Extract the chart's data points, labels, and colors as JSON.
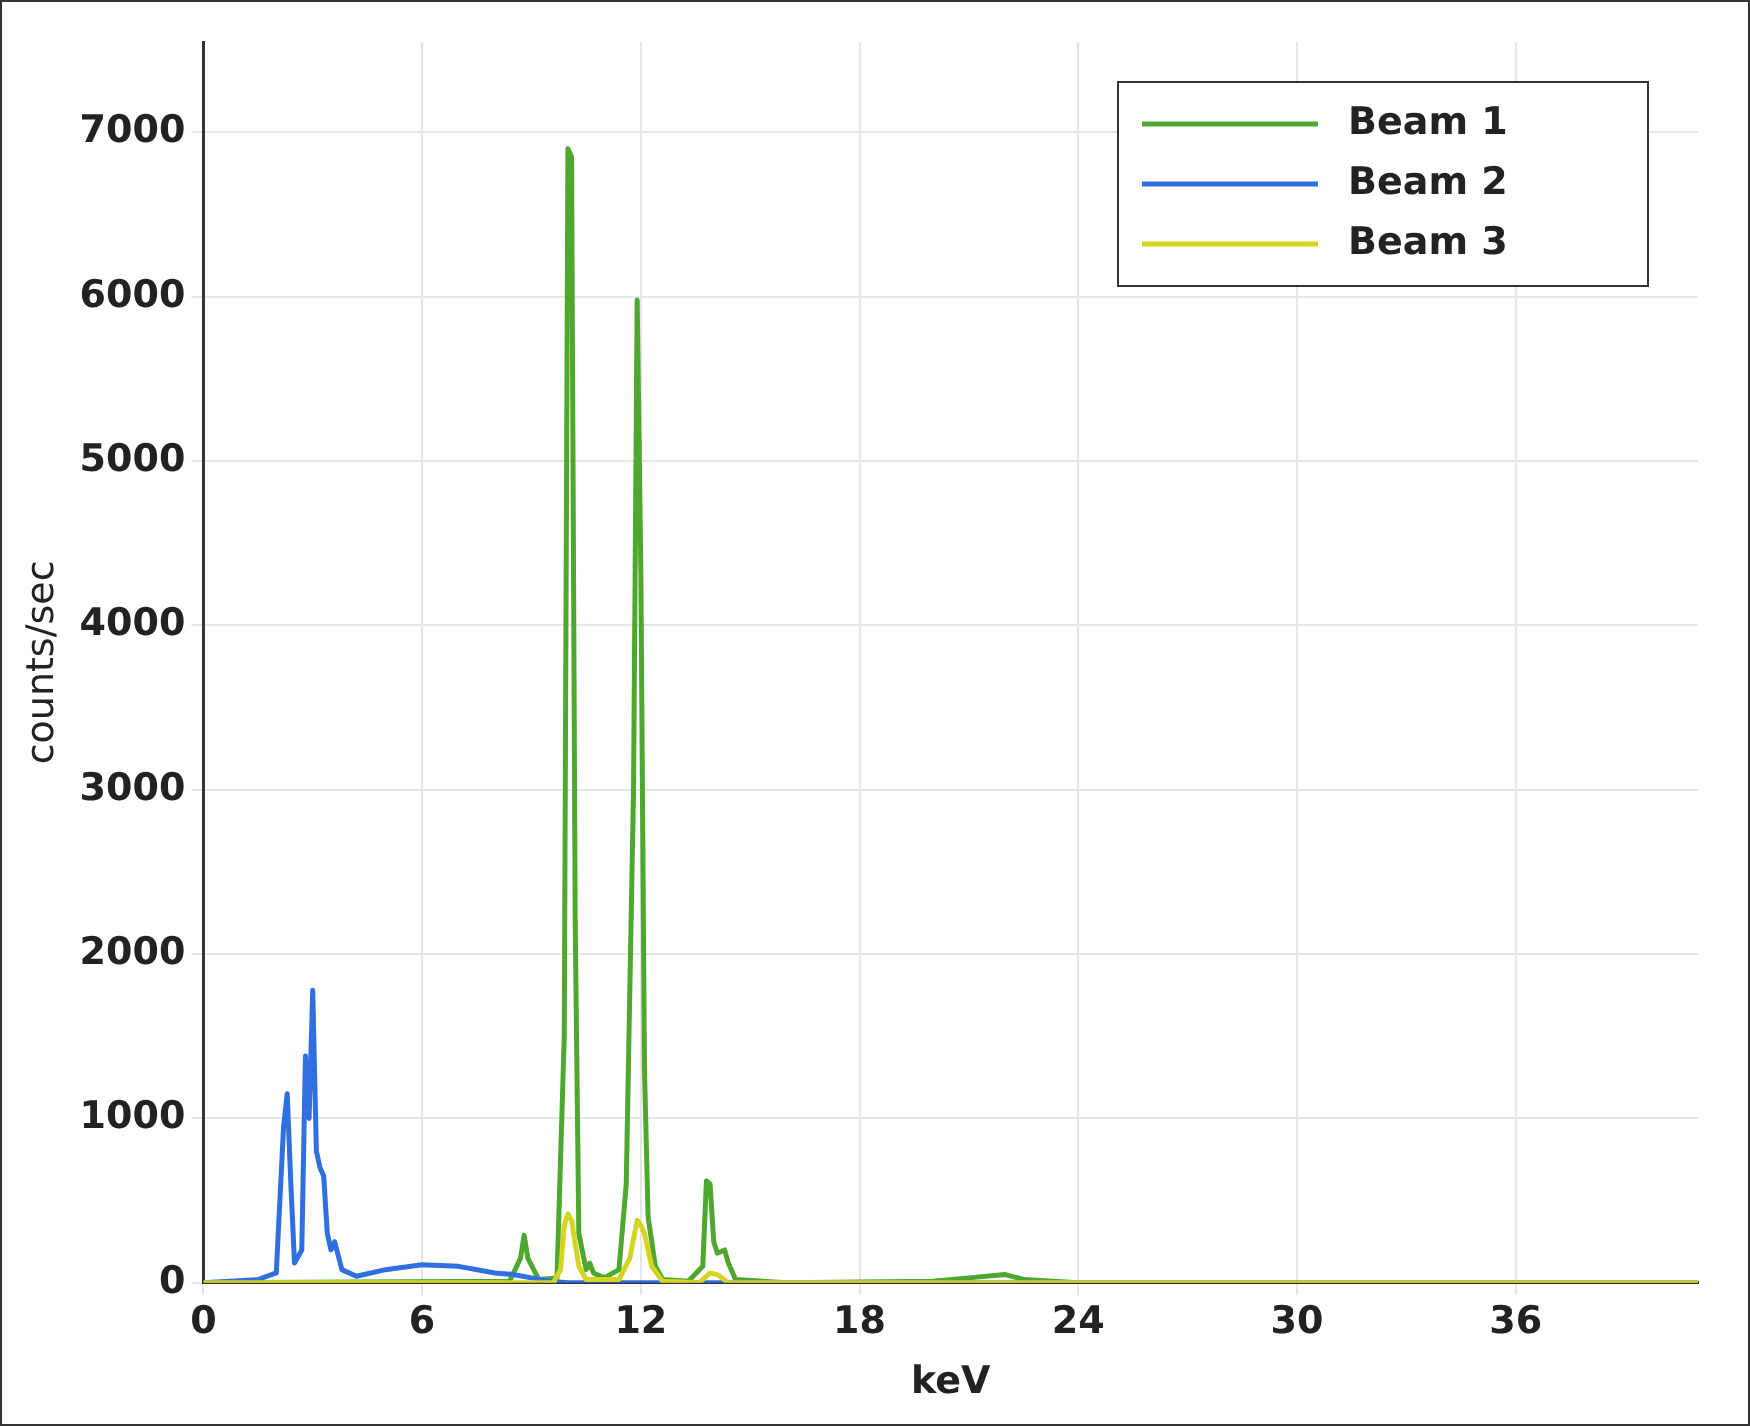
{
  "chart_data": {
    "type": "line",
    "xlabel": "keV",
    "ylabel": "counts/sec",
    "xlim": [
      0,
      41
    ],
    "ylim": [
      0,
      7550
    ],
    "xticks": [
      0,
      6,
      12,
      18,
      24,
      30,
      36
    ],
    "yticks": [
      0,
      1000,
      2000,
      3000,
      4000,
      5000,
      6000,
      7000
    ],
    "grid": true,
    "legend": "top right",
    "marker": "none",
    "line_style": "solid",
    "series": [
      {
        "name": "Beam 1",
        "color": "#4ea72e",
        "x": [
          0,
          8.4,
          8.7,
          8.8,
          8.9,
          9.2,
          9.7,
          9.9,
          10.0,
          10.1,
          10.2,
          10.3,
          10.5,
          10.6,
          10.7,
          11.0,
          11.4,
          11.6,
          11.8,
          11.9,
          12.0,
          12.1,
          12.2,
          12.4,
          12.6,
          13.3,
          13.7,
          13.8,
          13.9,
          14.0,
          14.1,
          14.3,
          14.4,
          14.6,
          16,
          20,
          21,
          22,
          22.5,
          24,
          41
        ],
        "values": [
          0,
          10,
          150,
          290,
          150,
          20,
          30,
          1500,
          6900,
          6850,
          2200,
          300,
          80,
          120,
          60,
          30,
          80,
          600,
          3000,
          5980,
          4350,
          1300,
          400,
          100,
          20,
          10,
          100,
          620,
          600,
          250,
          180,
          200,
          120,
          20,
          0,
          10,
          30,
          50,
          20,
          0,
          0
        ]
      },
      {
        "name": "Beam 2",
        "color": "#2f6fe0",
        "x": [
          0,
          1.5,
          2.0,
          2.2,
          2.3,
          2.4,
          2.5,
          2.7,
          2.8,
          2.9,
          3.0,
          3.1,
          3.2,
          3.3,
          3.4,
          3.5,
          3.6,
          3.8,
          4.2,
          5,
          6,
          7,
          8,
          8.5,
          9,
          9.5,
          10,
          41
        ],
        "values": [
          0,
          20,
          60,
          950,
          1150,
          600,
          120,
          200,
          1380,
          1000,
          1780,
          800,
          700,
          650,
          300,
          200,
          250,
          80,
          40,
          80,
          110,
          100,
          60,
          50,
          30,
          10,
          0,
          0
        ]
      },
      {
        "name": "Beam 3",
        "color": "#d4d422",
        "x": [
          0,
          9.6,
          9.8,
          9.9,
          10.0,
          10.1,
          10.3,
          10.5,
          11.4,
          11.7,
          11.9,
          12.0,
          12.1,
          12.3,
          12.6,
          13.6,
          13.9,
          14.1,
          14.4,
          41
        ],
        "values": [
          0,
          0,
          80,
          350,
          420,
          380,
          100,
          20,
          20,
          150,
          380,
          350,
          300,
          100,
          10,
          0,
          60,
          50,
          0,
          0
        ]
      }
    ]
  }
}
